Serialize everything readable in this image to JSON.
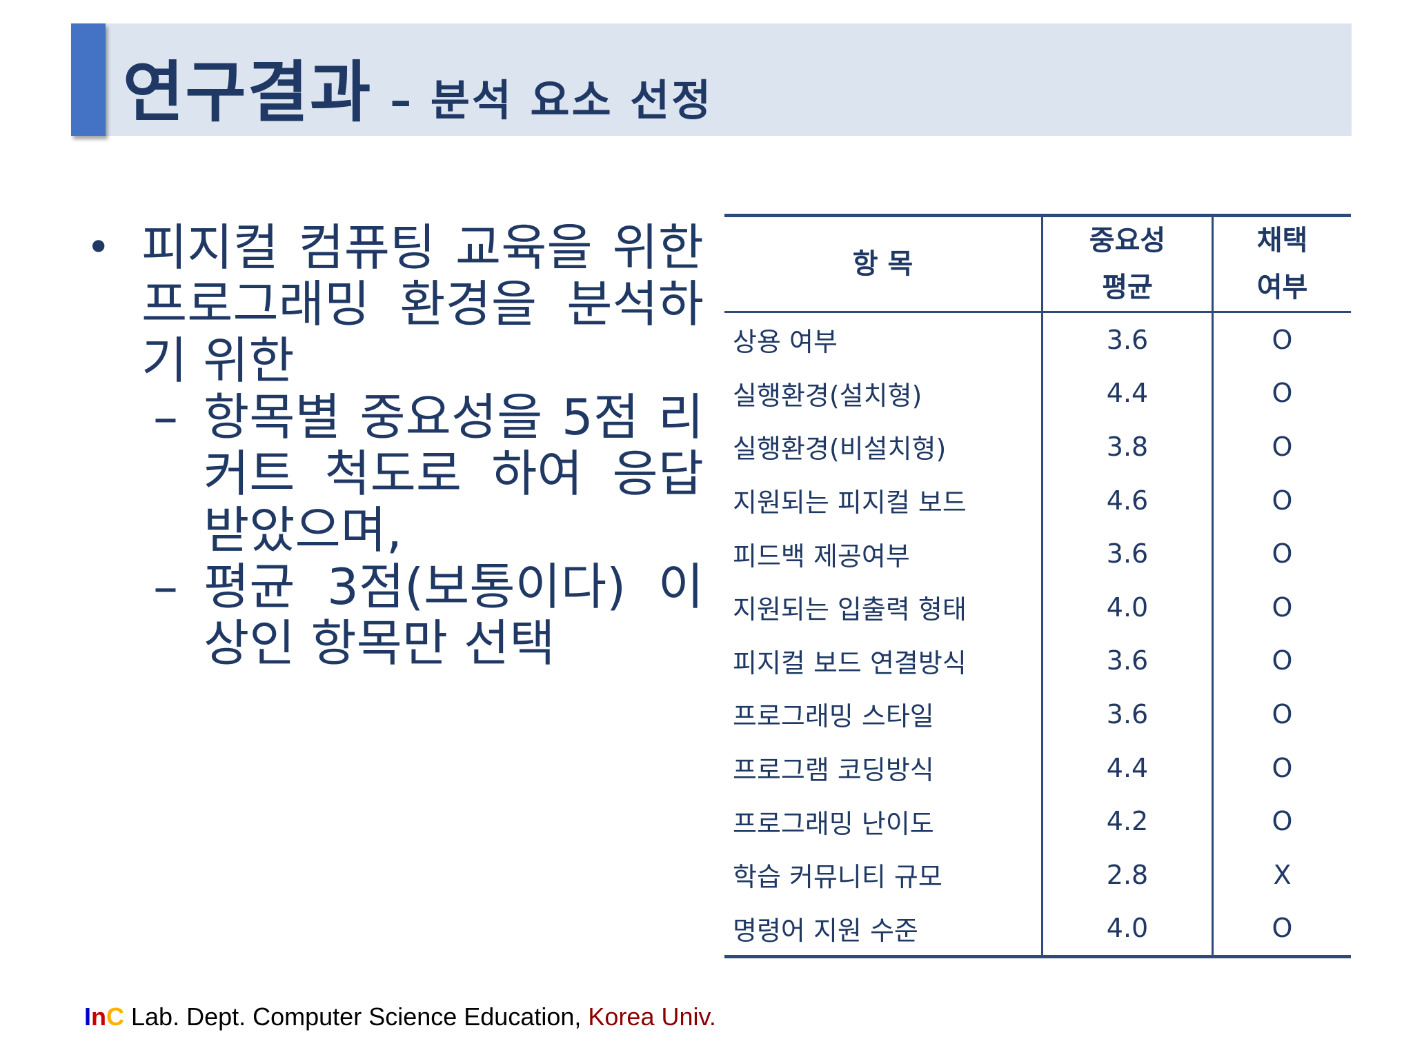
{
  "header": {
    "title_main": "연구결과",
    "title_sub": "– 분석 요소 선정"
  },
  "content": {
    "bullet_marker": "•",
    "bullet": "피지컬 컴퓨팅 교육을 위한 프로그래밍 환경을 분석하기 위한",
    "sub_marker": "–",
    "sub_bullets": [
      "항목별 중요성을 5점 리커트 척도로 하여 응답 받았으며,",
      "평균 3점(보통이다) 이상인 항목만 선택"
    ]
  },
  "table": {
    "headers": {
      "item": "항 목",
      "importance_line1": "중요성",
      "importance_line2": "평균",
      "adopt_line1": "채택",
      "adopt_line2": "여부"
    },
    "rows": [
      {
        "item": "상용 여부",
        "avg": "3.6",
        "adopted": "O"
      },
      {
        "item": "실행환경(설치형)",
        "avg": "4.4",
        "adopted": "O"
      },
      {
        "item": "실행환경(비설치형)",
        "avg": "3.8",
        "adopted": "O"
      },
      {
        "item": "지원되는 피지컬 보드",
        "avg": "4.6",
        "adopted": "O"
      },
      {
        "item": "피드백 제공여부",
        "avg": "3.6",
        "adopted": "O"
      },
      {
        "item": "지원되는 입출력 형태",
        "avg": "4.0",
        "adopted": "O"
      },
      {
        "item": "피지컬 보드 연결방식",
        "avg": "3.6",
        "adopted": "O"
      },
      {
        "item": "프로그래밍 스타일",
        "avg": "3.6",
        "adopted": "O"
      },
      {
        "item": "프로그램 코딩방식",
        "avg": "4.4",
        "adopted": "O"
      },
      {
        "item": "프로그래밍 난이도",
        "avg": "4.2",
        "adopted": "O"
      },
      {
        "item": "학습 커뮤니티 규모",
        "avg": "2.8",
        "adopted": "X"
      },
      {
        "item": "명령어 지원 수준",
        "avg": "4.0",
        "adopted": "O"
      }
    ]
  },
  "footer": {
    "logo_i": "I",
    "logo_n": "n",
    "logo_c": "C",
    "lab_text": " Lab. Dept. Computer Science Education, ",
    "university": "Korea Univ."
  }
}
